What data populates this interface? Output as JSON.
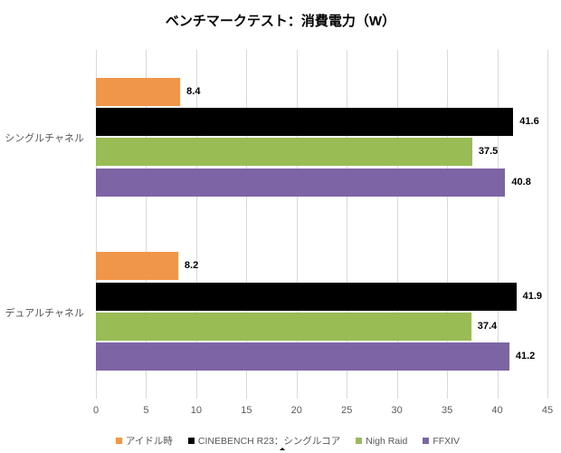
{
  "chart_data": {
    "type": "bar",
    "orientation": "horizontal",
    "title": "ベンチマークテスト：消費電力（W）",
    "categories": [
      "シングルチャネル",
      "デュアルチャネル"
    ],
    "series": [
      {
        "name": "アイドル時",
        "color": "#F0964B",
        "values": [
          8.4,
          8.2
        ]
      },
      {
        "name": "CINEBENCH R23：シングルコア",
        "color": "#000000",
        "values": [
          41.6,
          41.9
        ]
      },
      {
        "name": "Nigh Raid",
        "color": "#9ABC55",
        "values": [
          37.5,
          37.4
        ]
      },
      {
        "name": "FFXIV",
        "color": "#7C64A5",
        "values": [
          40.8,
          41.2
        ]
      }
    ],
    "xlim": [
      0,
      45
    ],
    "xticks": [
      0,
      5,
      10,
      15,
      20,
      25,
      30,
      35,
      40,
      45
    ],
    "grid": true,
    "legend_position": "bottom",
    "data_labels": true,
    "colors": {
      "gridline": "#D9D9D9",
      "axis_text": "#595959",
      "data_label": "#000000",
      "title": "#000000"
    }
  }
}
